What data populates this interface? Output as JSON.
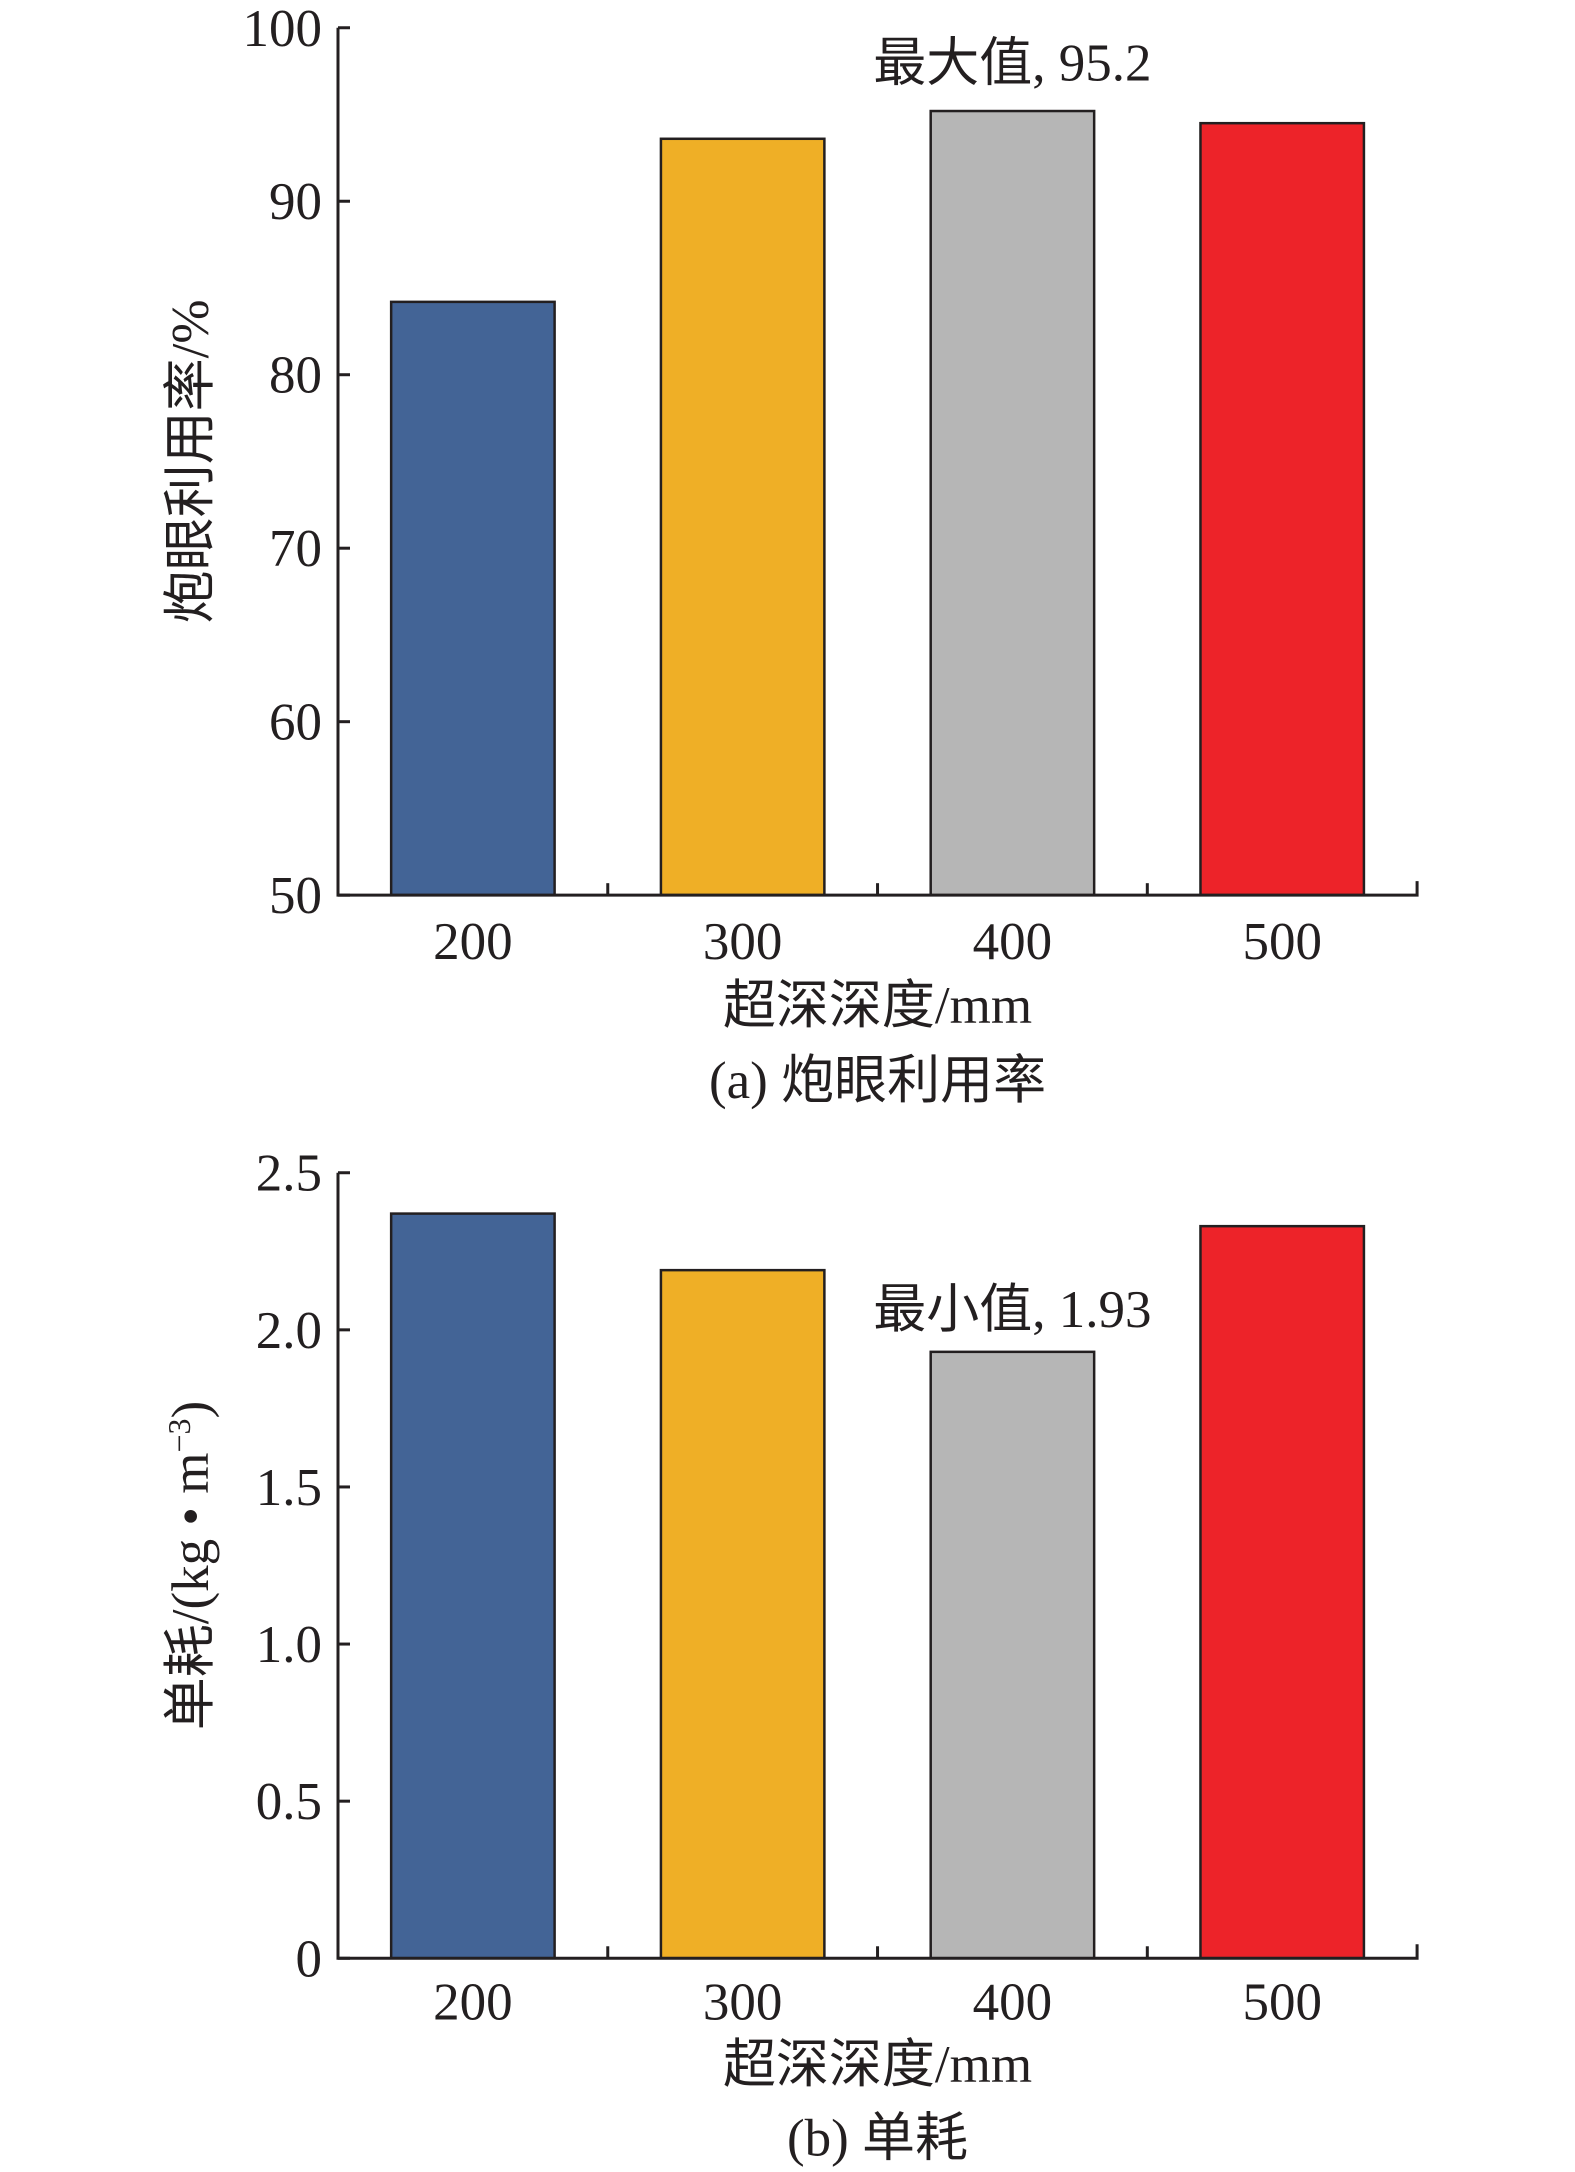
{
  "chart_data": [
    {
      "type": "bar",
      "categories": [
        "200",
        "300",
        "400",
        "500"
      ],
      "values": [
        84.2,
        93.6,
        95.2,
        94.5
      ],
      "colors": [
        "#436496",
        "#efaf26",
        "#b6b6b6",
        "#ed2329"
      ],
      "xlabel": "超深深度/mm",
      "ylabel": "炮眼利用率/%",
      "ylim": [
        50,
        100
      ],
      "yticks": [
        50,
        60,
        70,
        80,
        90,
        100
      ],
      "ytick_labels": [
        "50",
        "60",
        "70",
        "80",
        "90",
        "100"
      ],
      "caption": "(a) 炮眼利用率",
      "annotation": {
        "text": "最大值, 95.2",
        "category": "400"
      },
      "grid": false,
      "legend": "none"
    },
    {
      "type": "bar",
      "categories": [
        "200",
        "300",
        "400",
        "500"
      ],
      "values": [
        2.37,
        2.19,
        1.93,
        2.33
      ],
      "colors": [
        "#436496",
        "#efaf26",
        "#b6b6b6",
        "#ed2329"
      ],
      "xlabel": "超深深度/mm",
      "ylabel": "单耗/(kg • m",
      "ylabel_sup": "−3",
      "ylabel_close": ")",
      "ylim": [
        0,
        2.5
      ],
      "yticks": [
        0,
        0.5,
        1.0,
        1.5,
        2.0,
        2.5
      ],
      "ytick_labels": [
        "0",
        "0.5",
        "1.0",
        "1.5",
        "2.0",
        "2.5"
      ],
      "caption": "(b) 单耗",
      "annotation": {
        "text": "最小值, 1.93",
        "category": "400"
      },
      "grid": false,
      "legend": "none"
    }
  ]
}
